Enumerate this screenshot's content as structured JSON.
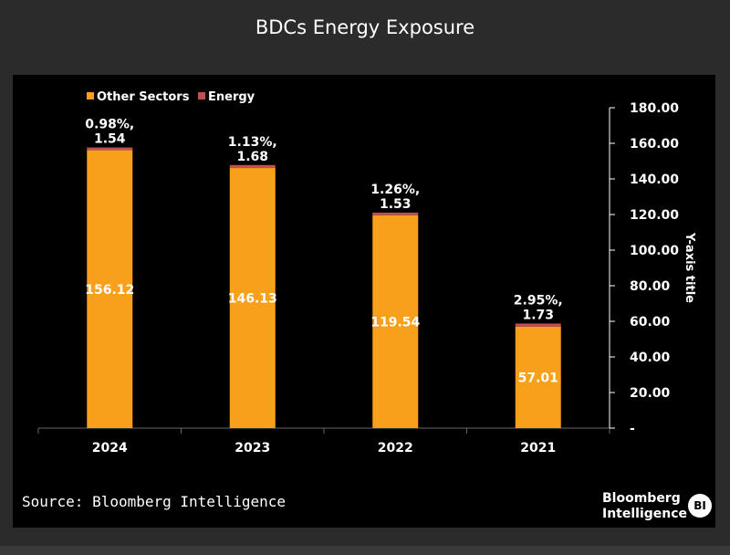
{
  "header": {
    "title": "BDCs Energy Exposure"
  },
  "footer": {
    "source": "Source: Bloomberg Intelligence",
    "brand_line1": "Bloomberg",
    "brand_line2": "Intelligence",
    "brand_badge": "BI"
  },
  "chart_data": {
    "type": "bar",
    "stacked": true,
    "title": "BDCs Energy Exposure",
    "ylabel": "Y-axis title",
    "xlabel": "",
    "y_axis_side": "right",
    "ylim": [
      0,
      180
    ],
    "yticks": [
      "-",
      "20.00",
      "40.00",
      "60.00",
      "80.00",
      "100.00",
      "120.00",
      "140.00",
      "160.00",
      "180.00"
    ],
    "legend_placement": "top-left",
    "grid": false,
    "categories": [
      "2024",
      "2023",
      "2022",
      "2021"
    ],
    "series": [
      {
        "name": "Other Sectors",
        "color": "#f8a01c",
        "values": [
          156.12,
          146.13,
          119.54,
          57.01
        ]
      },
      {
        "name": "Energy",
        "color": "#c0504d",
        "values": [
          1.54,
          1.68,
          1.53,
          1.73
        ]
      }
    ],
    "other_labels": [
      "156.12",
      "146.13",
      "119.54",
      "57.01"
    ],
    "energy_labels": [
      [
        "0.98%,",
        "1.54"
      ],
      [
        "1.13%,",
        "1.68"
      ],
      [
        "1.26%,",
        "1.53"
      ],
      [
        "2.95%,",
        "1.73"
      ]
    ]
  }
}
